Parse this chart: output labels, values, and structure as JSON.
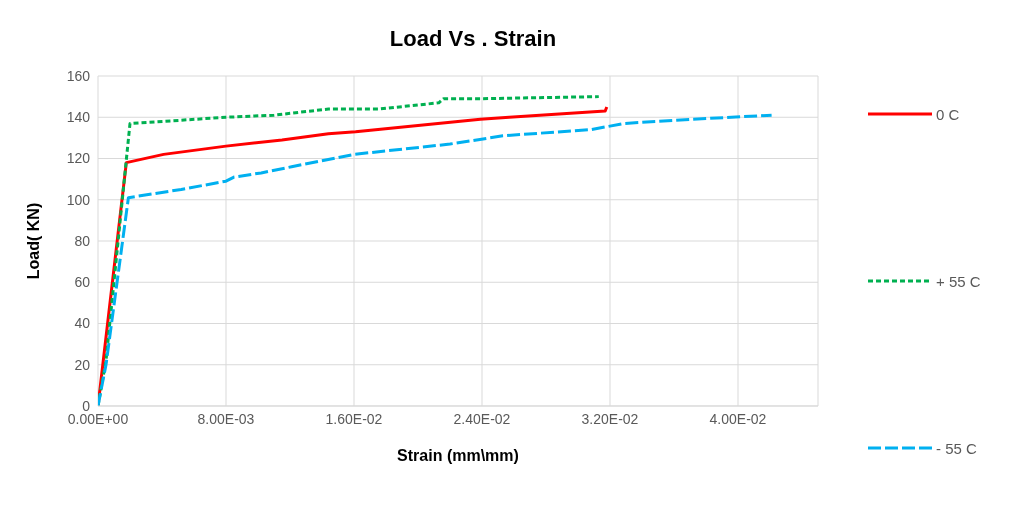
{
  "chart_data": {
    "type": "line",
    "title": "Load Vs . Strain",
    "xlabel": "Strain (mm\\mm)",
    "ylabel": "Load( KN)",
    "xlim": [
      0,
      0.045
    ],
    "xticks": [
      {
        "value": 0,
        "label": "0.00E+00"
      },
      {
        "value": 0.008,
        "label": "8.00E-03"
      },
      {
        "value": 0.016,
        "label": "1.60E-02"
      },
      {
        "value": 0.024,
        "label": "2.40E-02"
      },
      {
        "value": 0.032,
        "label": "3.20E-02"
      },
      {
        "value": 0.04,
        "label": "4.00E-02"
      }
    ],
    "ylim": [
      0,
      160
    ],
    "yticks": [
      0,
      20,
      40,
      60,
      80,
      100,
      120,
      140,
      160
    ],
    "grid": true,
    "legend": "right",
    "marker": "none",
    "series": [
      {
        "name": "0 C",
        "color": "#ff0000",
        "line_style": "solid",
        "x": [
          0,
          0.0003,
          0.00177,
          0.0041,
          0.008,
          0.0115,
          0.0144,
          0.0161,
          0.0239,
          0.0257,
          0.0317,
          0.0318
        ],
        "values": [
          0,
          20,
          118,
          122,
          126,
          129,
          132,
          133,
          139,
          140,
          143,
          145
        ]
      },
      {
        "name": "+ 55 C",
        "color": "#00b050",
        "line_style": "dotted",
        "x": [
          0,
          0.0005,
          0.002,
          0.0041,
          0.008,
          0.011,
          0.0144,
          0.0176,
          0.0213,
          0.0216,
          0.024,
          0.0313
        ],
        "values": [
          0,
          22,
          137,
          138,
          140,
          141,
          144,
          144,
          147,
          149,
          149,
          150
        ]
      },
      {
        "name": "- 55 C",
        "color": "#00b0f0",
        "line_style": "dashed",
        "x": [
          0,
          0.0005,
          0.0019,
          0.0052,
          0.008,
          0.0085,
          0.0102,
          0.0121,
          0.016,
          0.022,
          0.0253,
          0.0308,
          0.0329,
          0.0371,
          0.0421
        ],
        "values": [
          0,
          20,
          101,
          105,
          109,
          111,
          113,
          116,
          122,
          127,
          131,
          134,
          137,
          139,
          141
        ]
      }
    ]
  }
}
